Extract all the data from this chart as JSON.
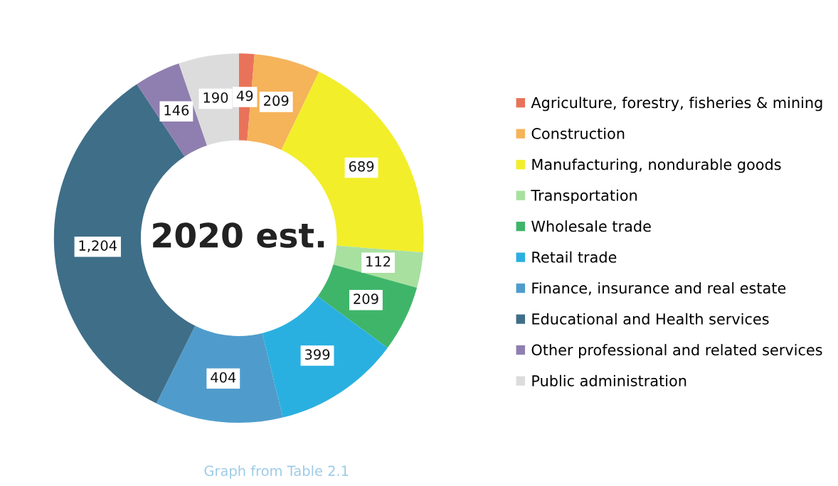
{
  "chart_data": {
    "type": "donut",
    "title": "2020 est.",
    "categories": [
      "Agriculture, forestry, fisheries & mining",
      "Construction",
      "Manufacturing, nondurable goods",
      "Transportation",
      "Wholesale trade",
      "Retail trade",
      "Finance, insurance and real estate",
      "Educational and Health services",
      "Other professional and related services",
      "Public administration"
    ],
    "values": [
      49,
      209,
      689,
      112,
      209,
      399,
      404,
      1204,
      146,
      190
    ],
    "value_labels": [
      "49",
      "209",
      "689",
      "112",
      "209",
      "399",
      "404",
      "1,204",
      "146",
      "190"
    ],
    "colors": [
      "#e8735a",
      "#f5b35a",
      "#f2ee2a",
      "#a8e0a0",
      "#3fb56a",
      "#2ab0e0",
      "#4f9ccc",
      "#3f6e88",
      "#8f7fb0",
      "#dcdcdc"
    ],
    "annotations": [
      "Graph from Table 2.1"
    ],
    "legend": "right"
  }
}
